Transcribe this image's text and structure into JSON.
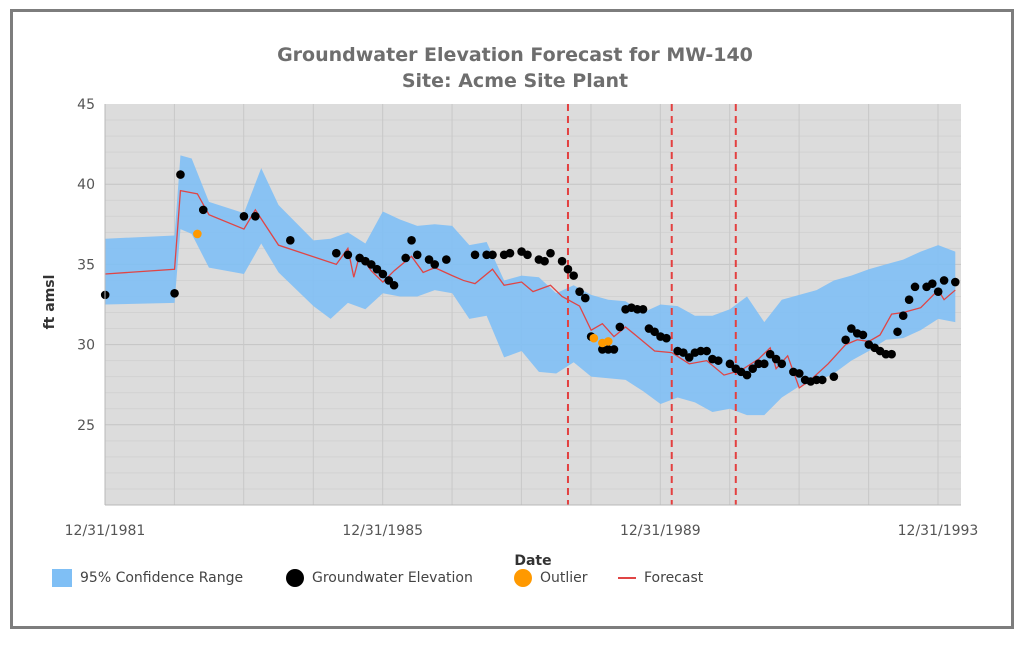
{
  "chart_data": {
    "type": "line",
    "title": "Groundwater Elevation Forecast for MW-140",
    "subtitle": "Site: Acme Site Plant",
    "xlabel": "Date",
    "ylabel": "ft amsl",
    "x_range": [
      "1981-12-31",
      "1994-05-01"
    ],
    "ylim": [
      20,
      45
    ],
    "y_ticks": [
      25,
      30,
      35,
      40,
      45
    ],
    "x_ticks": [
      {
        "date": "1981-12-31",
        "label": "12/31/1981"
      },
      {
        "date": "1985-12-31",
        "label": "12/31/1985"
      },
      {
        "date": "1989-12-31",
        "label": "12/31/1989"
      },
      {
        "date": "1993-12-31",
        "label": "12/31/1993"
      }
    ],
    "grid": true,
    "legend_position": "bottom-left",
    "vertical_reference_lines": [
      "1988-09-01",
      "1990-03-01",
      "1991-02-01"
    ],
    "colors": {
      "plot_background": "#dcdcdc",
      "confidence_band": "#7fbff5",
      "observed": "#000000",
      "outlier": "#ff9900",
      "forecast": "#e04545",
      "reference_line": "#e34040"
    },
    "series": [
      {
        "name": "95% Confidence Range",
        "kind": "band",
        "points": [
          [
            "1982-01-01",
            36.6,
            32.5
          ],
          [
            "1983-01-01",
            36.8,
            32.6
          ],
          [
            "1983-02-01",
            41.8,
            37.2
          ],
          [
            "1983-04-01",
            41.6,
            36.9
          ],
          [
            "1983-07-01",
            38.9,
            34.8
          ],
          [
            "1984-01-01",
            38.2,
            34.4
          ],
          [
            "1984-04-01",
            41.0,
            36.3
          ],
          [
            "1984-07-01",
            38.7,
            34.5
          ],
          [
            "1985-01-01",
            36.5,
            32.4
          ],
          [
            "1985-04-01",
            36.6,
            31.6
          ],
          [
            "1985-07-01",
            37.0,
            32.6
          ],
          [
            "1985-10-01",
            36.3,
            32.2
          ],
          [
            "1986-01-01",
            38.3,
            33.2
          ],
          [
            "1986-04-01",
            37.8,
            33.0
          ],
          [
            "1986-07-01",
            37.4,
            33.0
          ],
          [
            "1986-10-01",
            37.5,
            33.4
          ],
          [
            "1987-01-01",
            37.4,
            33.2
          ],
          [
            "1987-04-01",
            36.2,
            31.6
          ],
          [
            "1987-07-01",
            36.4,
            31.8
          ],
          [
            "1987-10-01",
            34.0,
            29.2
          ],
          [
            "1988-01-01",
            34.3,
            29.6
          ],
          [
            "1988-04-01",
            34.2,
            28.3
          ],
          [
            "1988-07-01",
            33.2,
            28.2
          ],
          [
            "1988-10-01",
            33.7,
            28.9
          ],
          [
            "1989-01-01",
            33.1,
            28.0
          ],
          [
            "1989-04-01",
            32.8,
            27.9
          ],
          [
            "1989-07-01",
            32.7,
            27.8
          ],
          [
            "1989-10-01",
            32.0,
            27.1
          ],
          [
            "1990-01-01",
            32.5,
            26.3
          ],
          [
            "1990-04-01",
            32.4,
            26.7
          ],
          [
            "1990-07-01",
            31.8,
            26.4
          ],
          [
            "1990-10-01",
            31.8,
            25.8
          ],
          [
            "1991-01-01",
            32.2,
            26.0
          ],
          [
            "1991-04-01",
            33.0,
            25.6
          ],
          [
            "1991-07-01",
            31.4,
            25.6
          ],
          [
            "1991-10-01",
            32.8,
            26.7
          ],
          [
            "1992-01-01",
            33.1,
            27.4
          ],
          [
            "1992-04-01",
            33.4,
            27.7
          ],
          [
            "1992-07-01",
            34.0,
            28.2
          ],
          [
            "1992-10-01",
            34.3,
            29.0
          ],
          [
            "1993-01-01",
            34.7,
            29.6
          ],
          [
            "1993-04-01",
            35.0,
            30.3
          ],
          [
            "1993-07-01",
            35.3,
            30.4
          ],
          [
            "1993-10-01",
            35.8,
            30.9
          ],
          [
            "1994-01-01",
            36.2,
            31.6
          ],
          [
            "1994-04-01",
            35.8,
            31.4
          ]
        ]
      },
      {
        "name": "Groundwater Elevation",
        "kind": "scatter",
        "points": [
          [
            "1982-01-01",
            33.1
          ],
          [
            "1983-01-01",
            33.2
          ],
          [
            "1983-02-01",
            40.6
          ],
          [
            "1983-06-01",
            38.4
          ],
          [
            "1984-01-01",
            38.0
          ],
          [
            "1984-03-01",
            38.0
          ],
          [
            "1984-09-01",
            36.5
          ],
          [
            "1985-05-01",
            35.7
          ],
          [
            "1985-07-01",
            35.6
          ],
          [
            "1985-09-01",
            35.4
          ],
          [
            "1985-10-01",
            35.2
          ],
          [
            "1985-11-01",
            35.0
          ],
          [
            "1985-12-01",
            34.7
          ],
          [
            "1986-01-01",
            34.4
          ],
          [
            "1986-02-01",
            34.0
          ],
          [
            "1986-03-01",
            33.7
          ],
          [
            "1986-05-01",
            35.4
          ],
          [
            "1986-06-01",
            36.5
          ],
          [
            "1986-07-01",
            35.6
          ],
          [
            "1986-09-01",
            35.3
          ],
          [
            "1986-10-01",
            35.0
          ],
          [
            "1986-12-01",
            35.3
          ],
          [
            "1987-05-01",
            35.6
          ],
          [
            "1987-07-01",
            35.6
          ],
          [
            "1987-08-01",
            35.6
          ],
          [
            "1987-10-01",
            35.6
          ],
          [
            "1987-11-01",
            35.7
          ],
          [
            "1988-01-01",
            35.8
          ],
          [
            "1988-02-01",
            35.6
          ],
          [
            "1988-04-01",
            35.3
          ],
          [
            "1988-05-01",
            35.2
          ],
          [
            "1988-06-01",
            35.7
          ],
          [
            "1988-08-01",
            35.2
          ],
          [
            "1988-09-01",
            34.7
          ],
          [
            "1988-10-01",
            34.3
          ],
          [
            "1988-11-01",
            33.3
          ],
          [
            "1988-12-01",
            32.9
          ],
          [
            "1989-01-01",
            30.5
          ],
          [
            "1989-03-01",
            29.7
          ],
          [
            "1989-04-01",
            29.7
          ],
          [
            "1989-05-01",
            29.7
          ],
          [
            "1989-06-01",
            31.1
          ],
          [
            "1989-07-01",
            32.2
          ],
          [
            "1989-08-01",
            32.3
          ],
          [
            "1989-09-01",
            32.2
          ],
          [
            "1989-10-01",
            32.2
          ],
          [
            "1989-11-01",
            31.0
          ],
          [
            "1989-12-01",
            30.8
          ],
          [
            "1990-01-01",
            30.5
          ],
          [
            "1990-02-01",
            30.4
          ],
          [
            "1990-04-01",
            29.6
          ],
          [
            "1990-05-01",
            29.5
          ],
          [
            "1990-06-01",
            29.2
          ],
          [
            "1990-07-01",
            29.5
          ],
          [
            "1990-08-01",
            29.6
          ],
          [
            "1990-09-01",
            29.6
          ],
          [
            "1990-10-01",
            29.1
          ],
          [
            "1990-11-01",
            29.0
          ],
          [
            "1991-01-01",
            28.8
          ],
          [
            "1991-02-01",
            28.5
          ],
          [
            "1991-03-01",
            28.3
          ],
          [
            "1991-04-01",
            28.1
          ],
          [
            "1991-05-01",
            28.5
          ],
          [
            "1991-06-01",
            28.8
          ],
          [
            "1991-07-01",
            28.8
          ],
          [
            "1991-08-01",
            29.4
          ],
          [
            "1991-09-01",
            29.1
          ],
          [
            "1991-10-01",
            28.8
          ],
          [
            "1991-12-01",
            28.3
          ],
          [
            "1992-01-01",
            28.2
          ],
          [
            "1992-02-01",
            27.8
          ],
          [
            "1992-03-01",
            27.7
          ],
          [
            "1992-04-01",
            27.8
          ],
          [
            "1992-05-01",
            27.8
          ],
          [
            "1992-07-01",
            28.0
          ],
          [
            "1992-09-01",
            30.3
          ],
          [
            "1992-10-01",
            31.0
          ],
          [
            "1992-11-01",
            30.7
          ],
          [
            "1992-12-01",
            30.6
          ],
          [
            "1993-01-01",
            30.0
          ],
          [
            "1993-02-01",
            29.8
          ],
          [
            "1993-03-01",
            29.6
          ],
          [
            "1993-04-01",
            29.4
          ],
          [
            "1993-05-01",
            29.4
          ],
          [
            "1993-06-01",
            30.8
          ],
          [
            "1993-07-01",
            31.8
          ],
          [
            "1993-08-01",
            32.8
          ],
          [
            "1993-09-01",
            33.6
          ],
          [
            "1993-11-01",
            33.6
          ],
          [
            "1994-01-01",
            33.3
          ],
          [
            "1993-12-01",
            33.8
          ],
          [
            "1994-02-01",
            34.0
          ],
          [
            "1994-04-01",
            33.9
          ]
        ]
      },
      {
        "name": "Outlier",
        "kind": "scatter",
        "points": [
          [
            "1983-05-01",
            36.9
          ],
          [
            "1989-01-15",
            30.4
          ],
          [
            "1989-03-01",
            30.1
          ],
          [
            "1989-04-01",
            30.2
          ]
        ]
      },
      {
        "name": "Forecast",
        "kind": "line",
        "points": [
          [
            "1982-01-01",
            34.4
          ],
          [
            "1983-01-01",
            34.7
          ],
          [
            "1983-02-01",
            39.6
          ],
          [
            "1983-05-01",
            39.4
          ],
          [
            "1983-07-01",
            38.1
          ],
          [
            "1984-01-01",
            37.2
          ],
          [
            "1984-03-01",
            38.4
          ],
          [
            "1984-07-01",
            36.2
          ],
          [
            "1985-05-01",
            35.0
          ],
          [
            "1985-07-01",
            36.0
          ],
          [
            "1985-08-01",
            34.2
          ],
          [
            "1985-09-01",
            35.6
          ],
          [
            "1985-11-01",
            34.6
          ],
          [
            "1986-01-01",
            33.9
          ],
          [
            "1986-03-01",
            34.6
          ],
          [
            "1986-06-01",
            35.5
          ],
          [
            "1986-08-01",
            34.5
          ],
          [
            "1986-10-01",
            34.8
          ],
          [
            "1987-01-01",
            34.3
          ],
          [
            "1987-03-01",
            34.0
          ],
          [
            "1987-05-01",
            33.8
          ],
          [
            "1987-08-01",
            34.7
          ],
          [
            "1987-10-01",
            33.7
          ],
          [
            "1988-01-01",
            33.9
          ],
          [
            "1988-03-01",
            33.3
          ],
          [
            "1988-06-01",
            33.7
          ],
          [
            "1988-08-01",
            33.0
          ],
          [
            "1988-11-01",
            32.4
          ],
          [
            "1989-01-01",
            30.9
          ],
          [
            "1989-03-01",
            31.3
          ],
          [
            "1989-05-01",
            30.5
          ],
          [
            "1989-07-01",
            31.1
          ],
          [
            "1989-09-01",
            30.5
          ],
          [
            "1989-12-01",
            29.6
          ],
          [
            "1990-03-01",
            29.5
          ],
          [
            "1990-06-01",
            28.8
          ],
          [
            "1990-09-01",
            29.0
          ],
          [
            "1990-12-01",
            28.1
          ],
          [
            "1991-03-01",
            28.4
          ],
          [
            "1991-06-01",
            29.1
          ],
          [
            "1991-08-01",
            29.8
          ],
          [
            "1991-09-01",
            28.5
          ],
          [
            "1991-11-01",
            29.3
          ],
          [
            "1992-01-01",
            27.3
          ],
          [
            "1992-03-01",
            27.8
          ],
          [
            "1992-06-01",
            28.8
          ],
          [
            "1992-09-01",
            30.0
          ],
          [
            "1992-11-01",
            30.3
          ],
          [
            "1993-01-01",
            30.2
          ],
          [
            "1993-03-01",
            30.6
          ],
          [
            "1993-05-01",
            31.9
          ],
          [
            "1993-07-01",
            32.0
          ],
          [
            "1993-10-01",
            32.3
          ],
          [
            "1994-01-01",
            33.4
          ],
          [
            "1994-02-01",
            32.8
          ],
          [
            "1994-04-01",
            33.4
          ]
        ]
      }
    ]
  },
  "legend": {
    "band": "95% Confidence Range",
    "observed": "Groundwater Elevation",
    "outlier": "Outlier",
    "forecast": "Forecast"
  }
}
